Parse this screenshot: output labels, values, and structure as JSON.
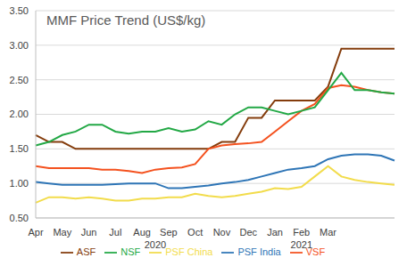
{
  "chart_data": {
    "type": "line",
    "title": "MMF Price Trend (US$/kg)",
    "categories": [
      "Apr",
      null,
      "May",
      null,
      "Jun",
      null,
      "Jul",
      null,
      "Aug",
      null,
      "Sep",
      null,
      "Oct",
      null,
      "Nov",
      null,
      "Dec",
      null,
      "Jan",
      null,
      "Feb",
      null,
      "Mar",
      null,
      null,
      null,
      null,
      null
    ],
    "annotations": [
      {
        "text": "2020",
        "x": 9
      },
      {
        "text": "2021",
        "x": 20
      }
    ],
    "series": [
      {
        "name": "PSF India",
        "color": "#2e75b6",
        "values": [
          1.02,
          1.0,
          0.98,
          0.98,
          0.98,
          0.98,
          0.99,
          1.0,
          1.0,
          1.0,
          0.93,
          0.93,
          0.95,
          0.97,
          1.0,
          1.02,
          1.05,
          1.1,
          1.15,
          1.2,
          1.22,
          1.25,
          1.35,
          1.4,
          1.42,
          1.42,
          1.4,
          1.33
        ]
      },
      {
        "name": "PSF China",
        "color": "#f2dc4b",
        "values": [
          0.72,
          0.8,
          0.8,
          0.78,
          0.8,
          0.78,
          0.75,
          0.75,
          0.78,
          0.78,
          0.8,
          0.8,
          0.85,
          0.82,
          0.8,
          0.82,
          0.85,
          0.88,
          0.93,
          0.92,
          0.95,
          1.1,
          1.25,
          1.1,
          1.05,
          1.02,
          1.0,
          0.98
        ]
      },
      {
        "name": "ASF",
        "color": "#843c0c",
        "values": [
          1.7,
          1.6,
          1.6,
          1.5,
          1.5,
          1.5,
          1.5,
          1.5,
          1.5,
          1.5,
          1.5,
          1.5,
          1.5,
          1.5,
          1.6,
          1.6,
          1.95,
          1.95,
          2.2,
          2.2,
          2.2,
          2.2,
          2.4,
          2.95,
          2.95,
          2.95,
          2.95,
          2.95
        ]
      },
      {
        "name": "VSF",
        "color": "#f4511e",
        "values": [
          1.25,
          1.22,
          1.22,
          1.22,
          1.22,
          1.2,
          1.2,
          1.18,
          1.15,
          1.2,
          1.22,
          1.23,
          1.28,
          1.5,
          1.55,
          1.57,
          1.58,
          1.6,
          1.75,
          1.9,
          2.05,
          2.15,
          2.38,
          2.42,
          2.4,
          2.35,
          2.32,
          2.3
        ]
      },
      {
        "name": "NSF",
        "color": "#22a845",
        "values": [
          1.55,
          1.6,
          1.7,
          1.75,
          1.85,
          1.85,
          1.75,
          1.72,
          1.75,
          1.75,
          1.8,
          1.75,
          1.78,
          1.9,
          1.85,
          2.0,
          2.1,
          2.1,
          2.05,
          2.0,
          2.05,
          2.1,
          2.35,
          2.6,
          2.35,
          2.35,
          2.32,
          2.3
        ]
      }
    ],
    "ylim": [
      0.5,
      3.5
    ],
    "yticks": [
      {
        "value": 0.5,
        "label": "0.50"
      },
      {
        "value": 1.0,
        "label": "1.00"
      },
      {
        "value": 1.5,
        "label": "1.50"
      },
      {
        "value": 2.0,
        "label": "2.00"
      },
      {
        "value": 2.5,
        "label": "2.50"
      },
      {
        "value": 3.0,
        "label": "3.00"
      },
      {
        "value": 3.5,
        "label": "3.50"
      }
    ],
    "grid": true,
    "legend": "bottom"
  }
}
